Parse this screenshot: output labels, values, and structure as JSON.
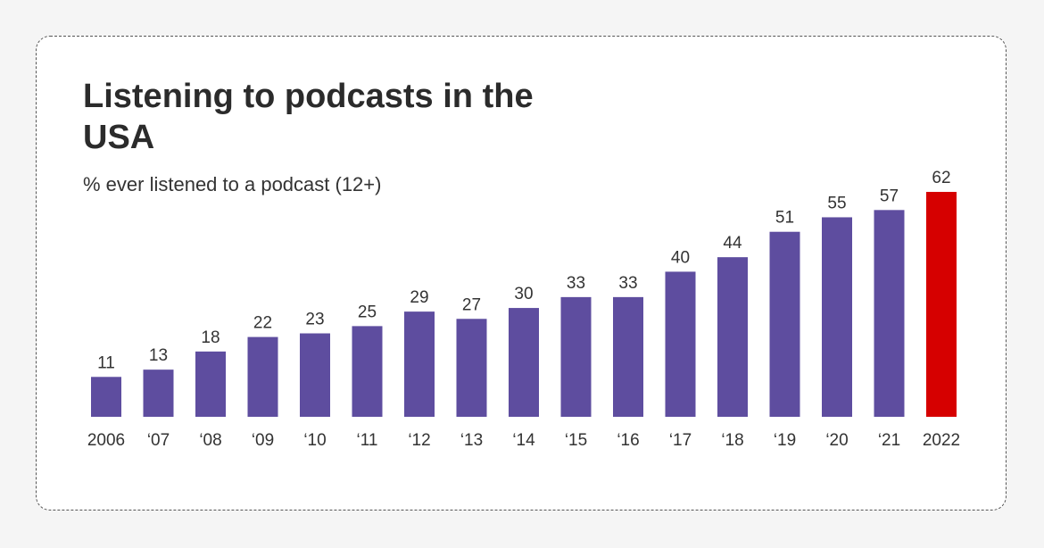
{
  "chart_data": {
    "type": "bar",
    "title": "Listening to podcasts in the USA",
    "subtitle": "% ever listened to a podcast (12+)",
    "categories": [
      "2006",
      "‘07",
      "‘08",
      "‘09",
      "‘10",
      "‘11",
      "‘12",
      "‘13",
      "‘14",
      "‘15",
      "‘16",
      "‘17",
      "‘18",
      "‘19",
      "‘20",
      "‘21",
      "2022"
    ],
    "values": [
      11,
      13,
      18,
      22,
      23,
      25,
      29,
      27,
      30,
      33,
      33,
      40,
      44,
      51,
      55,
      57,
      62
    ],
    "ylim": [
      0,
      62
    ],
    "grid": false,
    "colors": {
      "bar": "#5e4d9f",
      "highlight": "#d60000",
      "highlight_category": "2022"
    }
  }
}
